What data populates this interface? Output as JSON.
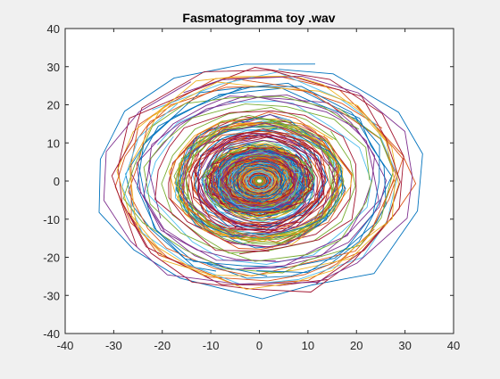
{
  "chart_data": {
    "type": "line",
    "title": "Fasmatogramma toy .wav",
    "xlabel": "",
    "ylabel": "",
    "xlim": [
      -40,
      40
    ],
    "ylim": [
      -40,
      40
    ],
    "x_ticks": [
      "-40",
      "-30",
      "-20",
      "-10",
      "0",
      "10",
      "20",
      "30",
      "40"
    ],
    "y_ticks": [
      "40",
      "30",
      "20",
      "10",
      "0",
      "-10",
      "-20",
      "-30",
      "-40"
    ],
    "grid": false,
    "legend": "none",
    "center": [
      0,
      0
    ],
    "extent": {
      "x_min": -32,
      "x_max": 33,
      "y_min": -33,
      "y_max": 33
    },
    "series_colors": [
      "#0072BD",
      "#D95319",
      "#EDB120",
      "#7E2F8E",
      "#77AC30",
      "#4DBEEE",
      "#A2142F"
    ]
  }
}
